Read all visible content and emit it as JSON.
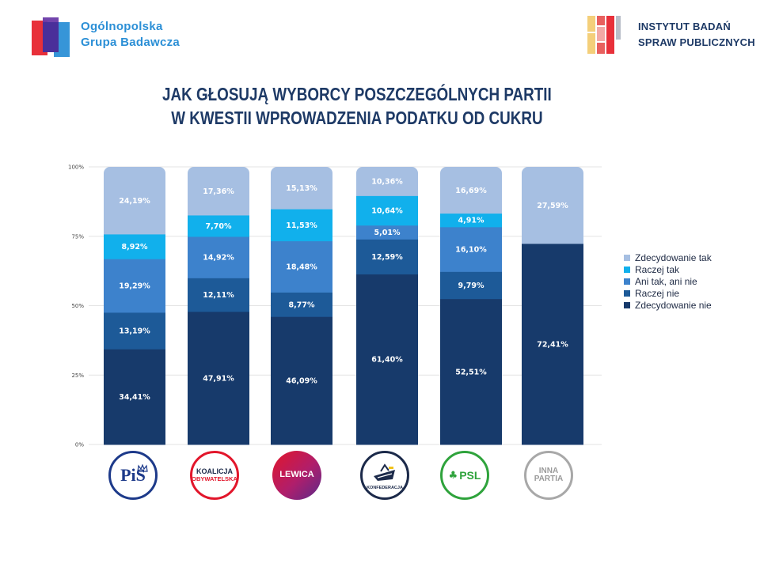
{
  "header": {
    "left_logo": {
      "line1": "Ogólnopolska",
      "line2": "Grupa Badawcza",
      "colors": [
        "#e8303a",
        "#6a3aa8",
        "#2b8fd6"
      ]
    },
    "right_logo": {
      "line1": "INSTYTUT BADAŃ",
      "line2": "SPRAW PUBLICZNYCH",
      "colors": [
        "#f4cf7a",
        "#e8605e",
        "#b9bec8"
      ]
    }
  },
  "title": {
    "line1": "JAK GŁOSUJĄ WYBORCY POSZCZEGÓLNYCH PARTII",
    "line2": "W KWESTII WPROWADZENIA PODATKU OD CUKRU"
  },
  "chart_data": {
    "type": "bar",
    "stacked": true,
    "categories": [
      "PiS",
      "KOALICJA OBYWATELSKA",
      "LEWICA",
      "KONFEDERACJA",
      "PSL",
      "INNA PARTIA"
    ],
    "yticks": [
      "0%",
      "25%",
      "50%",
      "75%",
      "100%"
    ],
    "ylim": [
      0,
      100
    ],
    "grid": true,
    "legend_position": "right",
    "series": [
      {
        "name": "Zdecydowanie nie",
        "color": "#173a6b",
        "values": [
          34.41,
          47.91,
          46.09,
          61.4,
          52.51,
          72.41
        ],
        "labels": [
          "34,41%",
          "47,91%",
          "46,09%",
          "61,40%",
          "52,51%",
          "72,41%"
        ]
      },
      {
        "name": "Raczej nie",
        "color": "#1d5a98",
        "values": [
          13.19,
          12.11,
          8.77,
          12.59,
          9.79,
          0
        ],
        "labels": [
          "13,19%",
          "12,11%",
          "8,77%",
          "12,59%",
          "9,79%",
          ""
        ]
      },
      {
        "name": "Ani tak, ani nie",
        "color": "#3d82cc",
        "values": [
          19.29,
          14.92,
          18.48,
          5.01,
          16.1,
          0
        ],
        "labels": [
          "19,29%",
          "14,92%",
          "18,48%",
          "5,01%",
          "16,10%",
          ""
        ]
      },
      {
        "name": "Raczej tak",
        "color": "#11b0ec",
        "values": [
          8.92,
          7.7,
          11.53,
          10.64,
          4.91,
          0
        ],
        "labels": [
          "8,92%",
          "7,70%",
          "11,53%",
          "10,64%",
          "4,91%",
          ""
        ]
      },
      {
        "name": "Zdecydowanie tak",
        "color": "#a6bfe2",
        "values": [
          24.19,
          17.36,
          15.13,
          10.36,
          16.69,
          27.59
        ],
        "labels": [
          "24,19%",
          "17,36%",
          "15,13%",
          "10,36%",
          "16,69%",
          "27,59%"
        ]
      }
    ],
    "legend_order": [
      "Zdecydowanie tak",
      "Raczej tak",
      "Ani tak, ani nie",
      "Raczej nie",
      "Zdecydowanie nie"
    ]
  },
  "parties": [
    {
      "id": "pis",
      "text": "PiS",
      "color": "#1d3a8a"
    },
    {
      "id": "ko",
      "text_line1": "KOALICJA",
      "text_line2": "OBYWATELSKA",
      "color": "#e2162b"
    },
    {
      "id": "lewica",
      "text": "LEWICA",
      "color": "#b01e6b"
    },
    {
      "id": "konfederacja",
      "text": "KONFEDERACJA",
      "color": "#1c2a4a"
    },
    {
      "id": "psl",
      "text": "PSL",
      "color": "#2fa33c"
    },
    {
      "id": "inna",
      "text_line1": "INNA",
      "text_line2": "PARTIA",
      "color": "#9a9a9a"
    }
  ]
}
